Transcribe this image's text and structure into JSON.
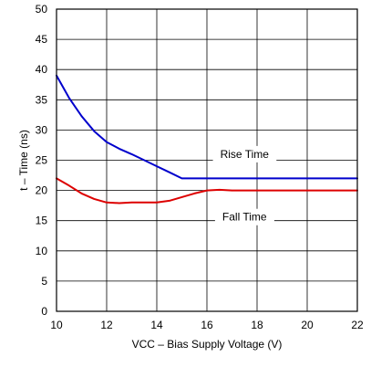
{
  "chart_data": {
    "type": "line",
    "xlabel": "VCC – Bias Supply Voltage (V)",
    "ylabel": "t – Time (ns)",
    "xlim": [
      10,
      22
    ],
    "ylim": [
      0,
      50
    ],
    "x_ticks": [
      10,
      12,
      14,
      16,
      18,
      20,
      22
    ],
    "y_ticks": [
      0,
      5,
      10,
      15,
      20,
      25,
      30,
      35,
      40,
      45,
      50
    ],
    "grid": true,
    "series": [
      {
        "name": "Rise Time",
        "color": "#0000cc",
        "x": [
          10,
          10.5,
          11,
          11.5,
          12,
          12.5,
          13,
          13.5,
          14,
          14.5,
          15,
          15.5,
          16,
          17,
          18,
          19,
          20,
          21,
          22
        ],
        "y": [
          39,
          35.3,
          32.3,
          29.8,
          28,
          26.9,
          26,
          25,
          24,
          23,
          22,
          22,
          22,
          22,
          22,
          22,
          22,
          22,
          22
        ]
      },
      {
        "name": "Fall Time",
        "color": "#dd0000",
        "x": [
          10,
          10.5,
          11,
          11.5,
          12,
          12.5,
          13,
          13.5,
          14,
          14.5,
          15,
          15.5,
          16,
          16.5,
          17,
          18,
          19,
          20,
          21,
          22
        ],
        "y": [
          22,
          20.8,
          19.5,
          18.6,
          18,
          17.9,
          18,
          18,
          18,
          18.3,
          18.9,
          19.5,
          20,
          20.1,
          20,
          20,
          20,
          20,
          20,
          20
        ]
      }
    ],
    "annotations": [
      {
        "text": "Rise Time",
        "x": 17.5,
        "y": 26,
        "target_x": 17.5,
        "target_y": 22
      },
      {
        "text": "Fall Time",
        "x": 17.5,
        "y": 15.6,
        "target_x": 17.5,
        "target_y": 20
      }
    ]
  }
}
